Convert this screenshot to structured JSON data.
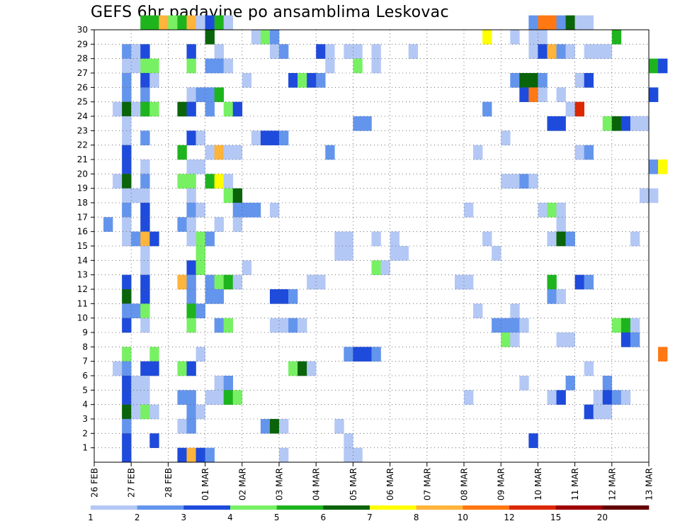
{
  "chart_data": {
    "type": "heatmap",
    "title": "GEFS 6hr padavine po ansamblima Leskovac",
    "x_tick_labels": [
      "26 FEB",
      "27 FEB",
      "28 FEB",
      "01 MAR",
      "02 MAR",
      "03 MAR",
      "04 MAR",
      "05 MAR",
      "06 MAR",
      "07 MAR",
      "08 MAR",
      "09 MAR",
      "10 MAR",
      "11 MAR",
      "12 MAR",
      "13 MAR"
    ],
    "y_tick_labels": [
      "1",
      "2",
      "3",
      "4",
      "5",
      "6",
      "7",
      "8",
      "9",
      "10",
      "11",
      "12",
      "13",
      "14",
      "15",
      "16",
      "17",
      "18",
      "19",
      "20",
      "21",
      "22",
      "23",
      "24",
      "25",
      "26",
      "27",
      "28",
      "29",
      "30"
    ],
    "x_step_hours": 6,
    "x_range_steps": [
      0,
      60
    ],
    "y_range": [
      0,
      30
    ],
    "grid": true,
    "colorbar": {
      "tick_labels": [
        "1",
        "2",
        "3",
        "4",
        "5",
        "6",
        "7",
        "8",
        "10",
        "12",
        "15",
        "20"
      ],
      "colors": [
        "#b4c8f5",
        "#6495ed",
        "#1e4bdc",
        "#78f064",
        "#1eb41e",
        "#0a640a",
        "#ffff00",
        "#ffb43c",
        "#ff7814",
        "#dc2800",
        "#a00000",
        "#640000"
      ]
    },
    "cells": [
      [
        30,
        5,
        5
      ],
      [
        30,
        6,
        5
      ],
      [
        30,
        7,
        8
      ],
      [
        30,
        8,
        4
      ],
      [
        30,
        9,
        5
      ],
      [
        30,
        10,
        8
      ],
      [
        30,
        11,
        1
      ],
      [
        30,
        12,
        3
      ],
      [
        30,
        13,
        5
      ],
      [
        30,
        14,
        1
      ],
      [
        30,
        47,
        2
      ],
      [
        30,
        48,
        9
      ],
      [
        30,
        49,
        9
      ],
      [
        30,
        50,
        2
      ],
      [
        30,
        51,
        6
      ],
      [
        30,
        52,
        1
      ],
      [
        30,
        53,
        1
      ],
      [
        29,
        12,
        6
      ],
      [
        29,
        17,
        1
      ],
      [
        29,
        18,
        4
      ],
      [
        29,
        19,
        2
      ],
      [
        29,
        42,
        7
      ],
      [
        29,
        45,
        1
      ],
      [
        29,
        47,
        1
      ],
      [
        29,
        48,
        1
      ],
      [
        29,
        56,
        5
      ],
      [
        28,
        3,
        2
      ],
      [
        28,
        4,
        1
      ],
      [
        28,
        5,
        3
      ],
      [
        28,
        10,
        3
      ],
      [
        28,
        13,
        1
      ],
      [
        28,
        19,
        1
      ],
      [
        28,
        20,
        2
      ],
      [
        28,
        24,
        3
      ],
      [
        28,
        25,
        1
      ],
      [
        28,
        27,
        1
      ],
      [
        28,
        28,
        1
      ],
      [
        28,
        30,
        1
      ],
      [
        28,
        34,
        1
      ],
      [
        28,
        47,
        1
      ],
      [
        28,
        48,
        3
      ],
      [
        28,
        49,
        8
      ],
      [
        28,
        50,
        2
      ],
      [
        28,
        51,
        1
      ],
      [
        28,
        53,
        1
      ],
      [
        28,
        54,
        1
      ],
      [
        28,
        55,
        1
      ],
      [
        27,
        3,
        1
      ],
      [
        27,
        4,
        1
      ],
      [
        27,
        5,
        4
      ],
      [
        27,
        6,
        4
      ],
      [
        27,
        10,
        4
      ],
      [
        27,
        12,
        2
      ],
      [
        27,
        13,
        2
      ],
      [
        27,
        14,
        1
      ],
      [
        27,
        25,
        1
      ],
      [
        27,
        28,
        4
      ],
      [
        27,
        30,
        1
      ],
      [
        27,
        60,
        5
      ],
      [
        27,
        61,
        3
      ],
      [
        26,
        3,
        2
      ],
      [
        26,
        5,
        3
      ],
      [
        26,
        6,
        1
      ],
      [
        26,
        16,
        1
      ],
      [
        26,
        21,
        3
      ],
      [
        26,
        22,
        4
      ],
      [
        26,
        23,
        3
      ],
      [
        26,
        24,
        2
      ],
      [
        26,
        45,
        2
      ],
      [
        26,
        46,
        6
      ],
      [
        26,
        47,
        6
      ],
      [
        26,
        48,
        2
      ],
      [
        26,
        52,
        1
      ],
      [
        26,
        53,
        3
      ],
      [
        25,
        3,
        2
      ],
      [
        25,
        5,
        2
      ],
      [
        25,
        10,
        1
      ],
      [
        25,
        11,
        2
      ],
      [
        25,
        12,
        2
      ],
      [
        25,
        13,
        5
      ],
      [
        25,
        46,
        3
      ],
      [
        25,
        47,
        9
      ],
      [
        25,
        48,
        1
      ],
      [
        25,
        50,
        1
      ],
      [
        25,
        60,
        3
      ],
      [
        24,
        2,
        1
      ],
      [
        24,
        3,
        6
      ],
      [
        24,
        4,
        1
      ],
      [
        24,
        5,
        5
      ],
      [
        24,
        6,
        4
      ],
      [
        24,
        9,
        6
      ],
      [
        24,
        10,
        3
      ],
      [
        24,
        12,
        2
      ],
      [
        24,
        14,
        4
      ],
      [
        24,
        15,
        3
      ],
      [
        24,
        42,
        2
      ],
      [
        24,
        51,
        1
      ],
      [
        24,
        52,
        10
      ],
      [
        23,
        3,
        1
      ],
      [
        23,
        28,
        2
      ],
      [
        23,
        29,
        2
      ],
      [
        23,
        49,
        3
      ],
      [
        23,
        50,
        3
      ],
      [
        23,
        55,
        4
      ],
      [
        23,
        56,
        6
      ],
      [
        23,
        57,
        3
      ],
      [
        23,
        58,
        1
      ],
      [
        23,
        59,
        1
      ],
      [
        22,
        3,
        1
      ],
      [
        22,
        5,
        2
      ],
      [
        22,
        10,
        3
      ],
      [
        22,
        11,
        1
      ],
      [
        22,
        17,
        1
      ],
      [
        22,
        18,
        3
      ],
      [
        22,
        19,
        3
      ],
      [
        22,
        20,
        2
      ],
      [
        22,
        44,
        1
      ],
      [
        21,
        3,
        3
      ],
      [
        21,
        9,
        5
      ],
      [
        21,
        12,
        1
      ],
      [
        21,
        13,
        8
      ],
      [
        21,
        14,
        1
      ],
      [
        21,
        15,
        1
      ],
      [
        21,
        25,
        2
      ],
      [
        21,
        41,
        1
      ],
      [
        21,
        52,
        1
      ],
      [
        21,
        53,
        2
      ],
      [
        20,
        3,
        3
      ],
      [
        20,
        5,
        1
      ],
      [
        20,
        10,
        1
      ],
      [
        20,
        11,
        1
      ],
      [
        20,
        60,
        2
      ],
      [
        20,
        61,
        7
      ],
      [
        19,
        2,
        1
      ],
      [
        19,
        3,
        6
      ],
      [
        19,
        5,
        2
      ],
      [
        19,
        9,
        4
      ],
      [
        19,
        10,
        4
      ],
      [
        19,
        12,
        5
      ],
      [
        19,
        13,
        7
      ],
      [
        19,
        14,
        1
      ],
      [
        19,
        44,
        1
      ],
      [
        19,
        45,
        1
      ],
      [
        19,
        46,
        2
      ],
      [
        19,
        47,
        1
      ],
      [
        18,
        3,
        1
      ],
      [
        18,
        4,
        1
      ],
      [
        18,
        5,
        1
      ],
      [
        18,
        10,
        1
      ],
      [
        18,
        14,
        4
      ],
      [
        18,
        15,
        6
      ],
      [
        18,
        59,
        1
      ],
      [
        18,
        60,
        1
      ],
      [
        17,
        3,
        2
      ],
      [
        17,
        5,
        3
      ],
      [
        17,
        10,
        2
      ],
      [
        17,
        11,
        1
      ],
      [
        17,
        15,
        2
      ],
      [
        17,
        16,
        2
      ],
      [
        17,
        17,
        2
      ],
      [
        17,
        19,
        1
      ],
      [
        17,
        40,
        1
      ],
      [
        17,
        48,
        1
      ],
      [
        17,
        49,
        4
      ],
      [
        17,
        50,
        1
      ],
      [
        16,
        1,
        2
      ],
      [
        16,
        3,
        1
      ],
      [
        16,
        5,
        3
      ],
      [
        16,
        9,
        2
      ],
      [
        16,
        10,
        1
      ],
      [
        16,
        13,
        1
      ],
      [
        16,
        15,
        1
      ],
      [
        16,
        50,
        1
      ],
      [
        15,
        3,
        1
      ],
      [
        15,
        4,
        2
      ],
      [
        15,
        5,
        8
      ],
      [
        15,
        6,
        3
      ],
      [
        15,
        10,
        1
      ],
      [
        15,
        11,
        4
      ],
      [
        15,
        12,
        2
      ],
      [
        15,
        26,
        1
      ],
      [
        15,
        27,
        1
      ],
      [
        15,
        30,
        1
      ],
      [
        15,
        32,
        1
      ],
      [
        15,
        42,
        1
      ],
      [
        15,
        49,
        1
      ],
      [
        15,
        50,
        6
      ],
      [
        15,
        51,
        2
      ],
      [
        15,
        58,
        1
      ],
      [
        14,
        5,
        1
      ],
      [
        14,
        11,
        4
      ],
      [
        14,
        26,
        1
      ],
      [
        14,
        27,
        1
      ],
      [
        14,
        32,
        1
      ],
      [
        14,
        33,
        1
      ],
      [
        14,
        43,
        1
      ],
      [
        13,
        5,
        1
      ],
      [
        13,
        10,
        3
      ],
      [
        13,
        11,
        4
      ],
      [
        13,
        16,
        1
      ],
      [
        13,
        30,
        4
      ],
      [
        13,
        31,
        1
      ],
      [
        12,
        3,
        3
      ],
      [
        12,
        5,
        3
      ],
      [
        12,
        9,
        8
      ],
      [
        12,
        10,
        2
      ],
      [
        12,
        12,
        2
      ],
      [
        12,
        13,
        4
      ],
      [
        12,
        14,
        5
      ],
      [
        12,
        15,
        1
      ],
      [
        12,
        23,
        1
      ],
      [
        12,
        24,
        1
      ],
      [
        12,
        39,
        1
      ],
      [
        12,
        40,
        1
      ],
      [
        12,
        49,
        5
      ],
      [
        12,
        52,
        3
      ],
      [
        12,
        53,
        2
      ],
      [
        11,
        3,
        6
      ],
      [
        11,
        5,
        3
      ],
      [
        11,
        10,
        2
      ],
      [
        11,
        12,
        2
      ],
      [
        11,
        13,
        2
      ],
      [
        11,
        19,
        3
      ],
      [
        11,
        20,
        3
      ],
      [
        11,
        21,
        2
      ],
      [
        11,
        49,
        2
      ],
      [
        11,
        50,
        1
      ],
      [
        10,
        3,
        2
      ],
      [
        10,
        4,
        2
      ],
      [
        10,
        5,
        4
      ],
      [
        10,
        10,
        5
      ],
      [
        10,
        11,
        2
      ],
      [
        10,
        41,
        1
      ],
      [
        10,
        45,
        1
      ],
      [
        9,
        3,
        3
      ],
      [
        9,
        5,
        1
      ],
      [
        9,
        10,
        4
      ],
      [
        9,
        13,
        2
      ],
      [
        9,
        14,
        4
      ],
      [
        9,
        19,
        1
      ],
      [
        9,
        20,
        1
      ],
      [
        9,
        21,
        2
      ],
      [
        9,
        22,
        1
      ],
      [
        9,
        43,
        2
      ],
      [
        9,
        44,
        2
      ],
      [
        9,
        45,
        2
      ],
      [
        9,
        46,
        1
      ],
      [
        9,
        56,
        4
      ],
      [
        9,
        57,
        5
      ],
      [
        9,
        58,
        1
      ],
      [
        8,
        44,
        4
      ],
      [
        8,
        45,
        1
      ],
      [
        8,
        50,
        1
      ],
      [
        8,
        51,
        1
      ],
      [
        8,
        57,
        3
      ],
      [
        8,
        58,
        2
      ],
      [
        7,
        3,
        4
      ],
      [
        7,
        6,
        4
      ],
      [
        7,
        11,
        1
      ],
      [
        7,
        27,
        2
      ],
      [
        7,
        28,
        3
      ],
      [
        7,
        29,
        3
      ],
      [
        7,
        30,
        2
      ],
      [
        7,
        61,
        9
      ],
      [
        6,
        2,
        1
      ],
      [
        6,
        3,
        2
      ],
      [
        6,
        5,
        3
      ],
      [
        6,
        6,
        3
      ],
      [
        6,
        9,
        4
      ],
      [
        6,
        10,
        3
      ],
      [
        6,
        21,
        4
      ],
      [
        6,
        22,
        6
      ],
      [
        6,
        23,
        1
      ],
      [
        6,
        53,
        1
      ],
      [
        5,
        3,
        3
      ],
      [
        5,
        4,
        1
      ],
      [
        5,
        5,
        1
      ],
      [
        5,
        13,
        1
      ],
      [
        5,
        14,
        2
      ],
      [
        5,
        46,
        1
      ],
      [
        5,
        51,
        2
      ],
      [
        5,
        55,
        2
      ],
      [
        4,
        3,
        3
      ],
      [
        4,
        4,
        1
      ],
      [
        4,
        5,
        1
      ],
      [
        4,
        9,
        2
      ],
      [
        4,
        10,
        2
      ],
      [
        4,
        12,
        1
      ],
      [
        4,
        13,
        1
      ],
      [
        4,
        14,
        5
      ],
      [
        4,
        15,
        4
      ],
      [
        4,
        40,
        1
      ],
      [
        4,
        49,
        1
      ],
      [
        4,
        50,
        3
      ],
      [
        4,
        54,
        1
      ],
      [
        4,
        55,
        3
      ],
      [
        4,
        56,
        2
      ],
      [
        4,
        57,
        1
      ],
      [
        3,
        3,
        6
      ],
      [
        3,
        4,
        1
      ],
      [
        3,
        5,
        4
      ],
      [
        3,
        6,
        1
      ],
      [
        3,
        10,
        2
      ],
      [
        3,
        11,
        1
      ],
      [
        3,
        53,
        3
      ],
      [
        3,
        54,
        1
      ],
      [
        3,
        55,
        1
      ],
      [
        2,
        3,
        2
      ],
      [
        2,
        9,
        1
      ],
      [
        2,
        10,
        2
      ],
      [
        2,
        18,
        2
      ],
      [
        2,
        19,
        6
      ],
      [
        2,
        20,
        1
      ],
      [
        2,
        26,
        1
      ],
      [
        1,
        3,
        3
      ],
      [
        1,
        6,
        3
      ],
      [
        1,
        27,
        1
      ],
      [
        1,
        47,
        3
      ],
      [
        0,
        3,
        3
      ],
      [
        0,
        9,
        3
      ],
      [
        0,
        10,
        8
      ],
      [
        0,
        11,
        3
      ],
      [
        0,
        12,
        2
      ],
      [
        0,
        20,
        1
      ],
      [
        0,
        27,
        1
      ],
      [
        0,
        28,
        1
      ]
    ]
  }
}
